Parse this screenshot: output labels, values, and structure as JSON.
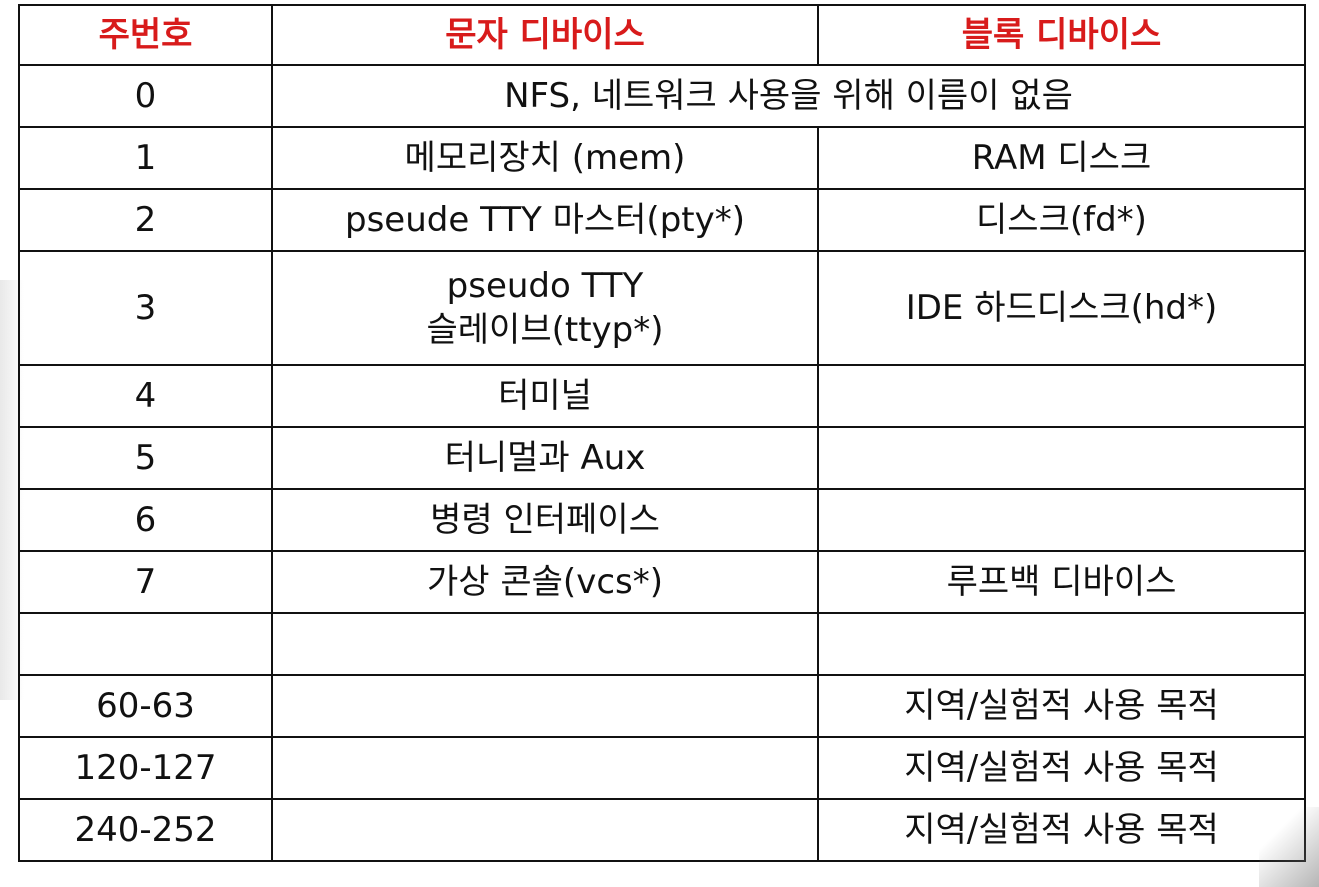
{
  "table": {
    "headers": [
      "주번호",
      "문자 디바이스",
      "블록 디바이스"
    ],
    "rows": [
      {
        "major": "0",
        "merged": "NFS, 네트워크 사용을 위해 이름이 없음"
      },
      {
        "major": "1",
        "char": "메모리장치 (mem)",
        "block": "RAM 디스크"
      },
      {
        "major": "2",
        "char": "pseude TTY 마스터(pty*)",
        "block": "디스크(fd*)"
      },
      {
        "major": "3",
        "char_line1": "pseudo TTY",
        "char_line2": "슬레이브(ttyp*)",
        "block": "IDE 하드디스크(hd*)"
      },
      {
        "major": "4",
        "char": "터미널",
        "block": ""
      },
      {
        "major": "5",
        "char": "터니멀과 Aux",
        "block": ""
      },
      {
        "major": "6",
        "char": "병령 인터페이스",
        "block": ""
      },
      {
        "major": "7",
        "char": "가상 콘솔(vcs*)",
        "block": "루프백 디바이스"
      },
      {
        "major": "",
        "char": "",
        "block": ""
      },
      {
        "major": "60-63",
        "char": "",
        "block": "지역/실험적 사용 목적"
      },
      {
        "major": "120-127",
        "char": "",
        "block": "지역/실험적 사용 목적"
      },
      {
        "major": "240-252",
        "char": "",
        "block": "지역/실험적 사용 목적"
      }
    ]
  }
}
